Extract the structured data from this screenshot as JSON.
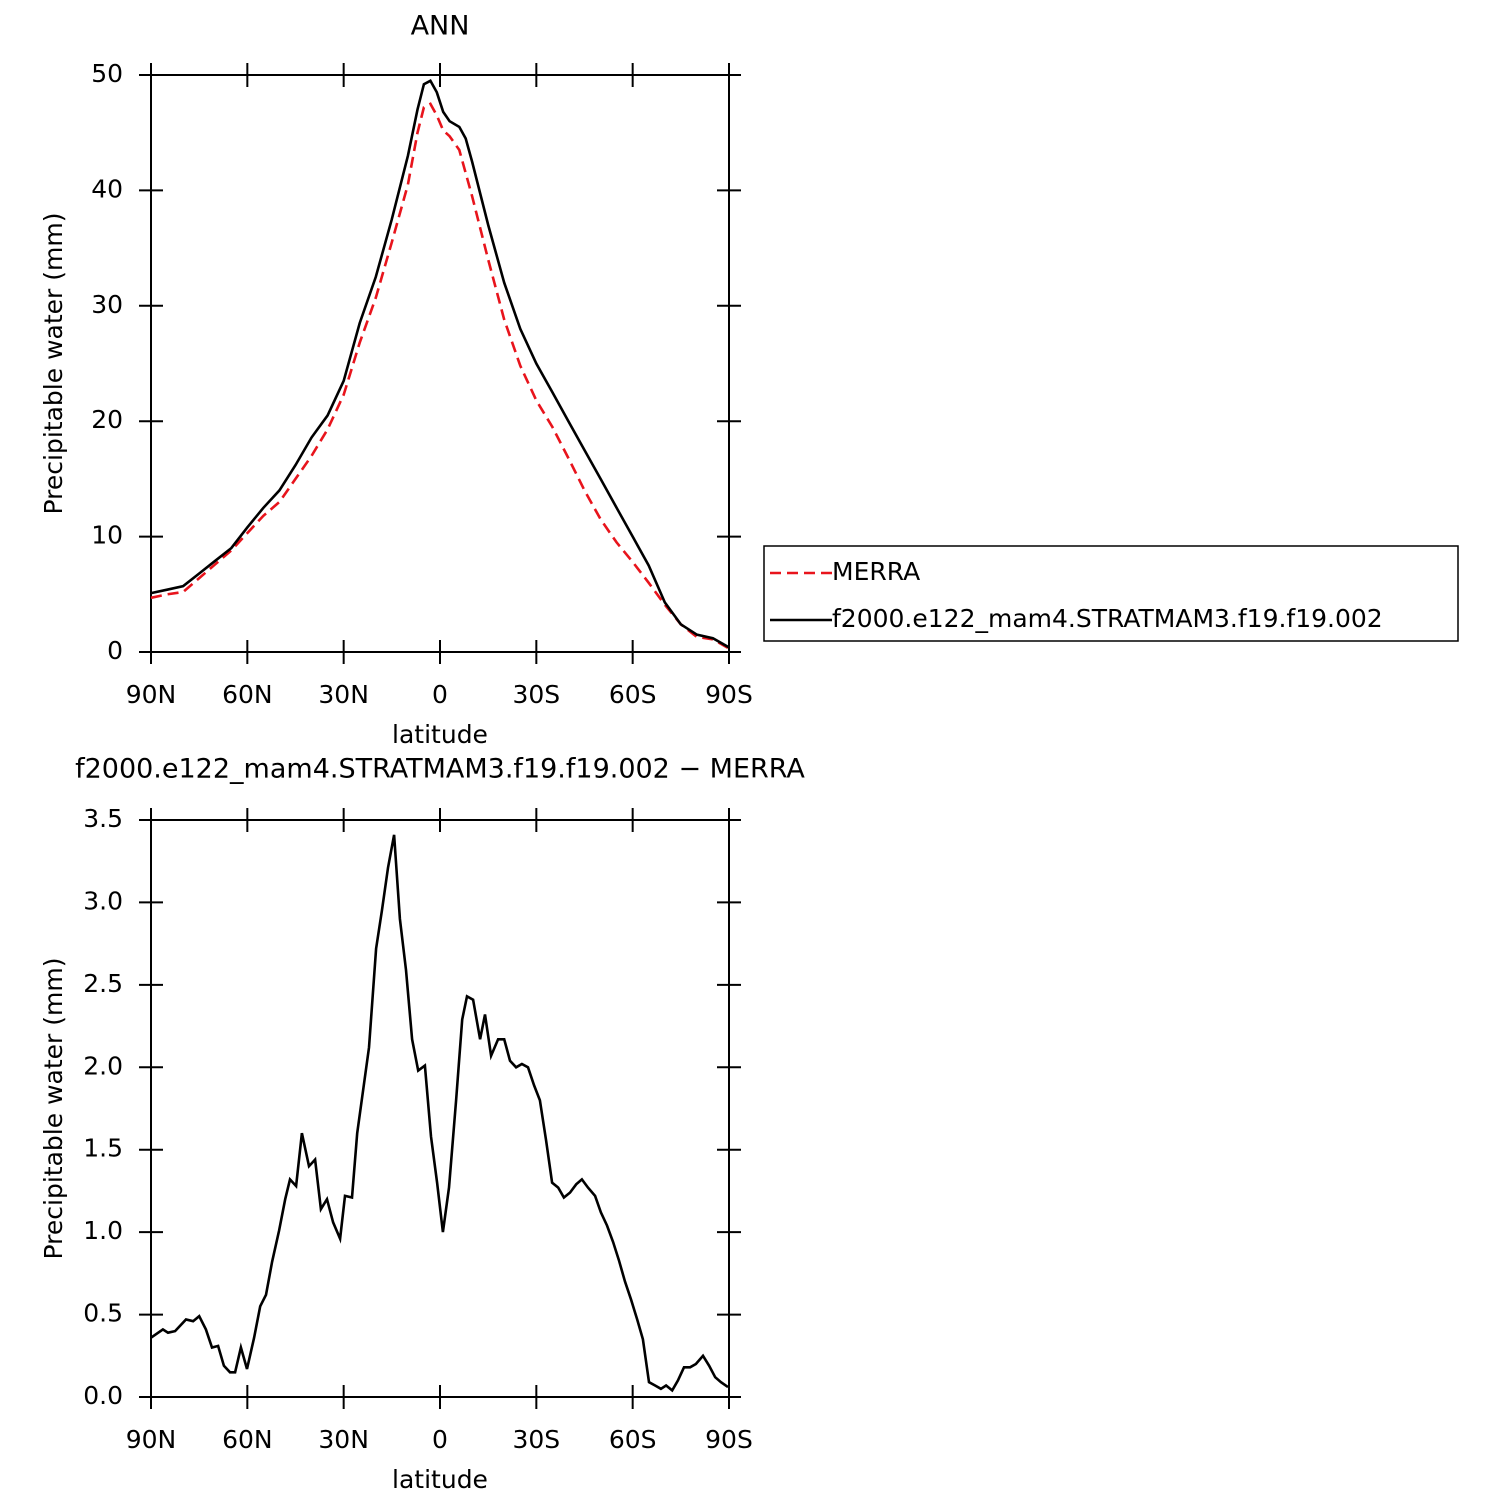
{
  "chart_data": [
    {
      "type": "line",
      "title": "ANN",
      "xlabel": "latitude",
      "ylabel": "Precipitable water (mm)",
      "legend": "right",
      "xlim": [
        90,
        -90
      ],
      "xticks": [
        {
          "value": 90,
          "label": "90N"
        },
        {
          "value": 60,
          "label": "60N"
        },
        {
          "value": 30,
          "label": "30N"
        },
        0,
        {
          "value": -30,
          "label": "30S"
        },
        {
          "value": -60,
          "label": "60S"
        },
        {
          "value": -90,
          "label": "90S"
        }
      ],
      "ylim": [
        0,
        50
      ],
      "yticks": [
        0,
        10,
        20,
        30,
        40,
        50
      ],
      "x": [
        90,
        85,
        80,
        75,
        70,
        65,
        60,
        55,
        50,
        45,
        40,
        35,
        30,
        25,
        20,
        15,
        10,
        7,
        5,
        3,
        1,
        -1,
        -3,
        -6,
        -8,
        -10,
        -15,
        -20,
        -25,
        -30,
        -35,
        -40,
        -45,
        -50,
        -55,
        -60,
        -65,
        -70,
        -75,
        -80,
        -85,
        -90
      ],
      "series": [
        {
          "name": "MERRA",
          "color": "#e8141c",
          "dash": true,
          "values": [
            4.7,
            5.0,
            5.2,
            6.4,
            7.6,
            8.8,
            10.3,
            11.8,
            13,
            15,
            17,
            19.3,
            22.3,
            26.8,
            30.7,
            35.5,
            40.5,
            45,
            47.2,
            47.5,
            46.5,
            45.2,
            44.7,
            43.5,
            41.5,
            39.5,
            34,
            28.8,
            24.8,
            21.8,
            19.5,
            16.8,
            14,
            11.5,
            9.5,
            7.8,
            6,
            4.1,
            2.4,
            1.3,
            1.1,
            0.3
          ]
        },
        {
          "name": "f2000.e122_mam4.STRATMAM3.f19.f19.002",
          "color": "#000000",
          "dash": false,
          "values": [
            5.1,
            5.4,
            5.7,
            6.8,
            7.9,
            9.0,
            10.8,
            12.5,
            14.0,
            16.2,
            18.6,
            20.5,
            23.5,
            28.5,
            32.5,
            37.5,
            43,
            47,
            49.2,
            49.5,
            48.5,
            46.8,
            46,
            45.5,
            44.5,
            42.5,
            37,
            32,
            28,
            25,
            22.5,
            20,
            17.5,
            15,
            12.5,
            10,
            7.5,
            4.3,
            2.4,
            1.5,
            1.2,
            0.4
          ]
        }
      ]
    },
    {
      "type": "line",
      "title": "f2000.e122_mam4.STRATMAM3.f19.f19.002 − MERRA",
      "xlabel": "latitude",
      "ylabel": "Precipitable water (mm)",
      "xlim": [
        90,
        -90
      ],
      "xticks": [
        {
          "value": 90,
          "label": "90N"
        },
        {
          "value": 60,
          "label": "60N"
        },
        {
          "value": 30,
          "label": "30N"
        },
        0,
        {
          "value": -30,
          "label": "30S"
        },
        {
          "value": -60,
          "label": "60S"
        },
        {
          "value": -90,
          "label": "90S"
        }
      ],
      "ylim": [
        0,
        3.5
      ],
      "yticks": [
        {
          "value": 0,
          "label": "0.0"
        },
        0.5,
        {
          "value": 1,
          "label": "1.0"
        },
        1.5,
        {
          "value": 2,
          "label": "2.0"
        },
        2.5,
        {
          "value": 3,
          "label": "3.0"
        },
        3.5
      ],
      "x": [
        90.0,
        86.3,
        84.7,
        82.5,
        79.1,
        76.9,
        75.0,
        72.9,
        71.0,
        69.1,
        67.3,
        65.4,
        63.8,
        62.0,
        60.1,
        57.9,
        56.0,
        54.2,
        52.3,
        50.1,
        48.2,
        46.7,
        44.8,
        43.0,
        40.8,
        38.9,
        37.1,
        35.2,
        33.3,
        31.1,
        29.6,
        27.4,
        25.8,
        22.1,
        19.9,
        18.1,
        16.2,
        14.3,
        12.5,
        10.6,
        8.7,
        6.8,
        4.7,
        2.8,
        0.9,
        -0.9,
        -2.8,
        -5.0,
        -6.9,
        -8.4,
        -10.3,
        -12.5,
        -14.0,
        -15.9,
        -18.1,
        -20.0,
        -21.8,
        -23.7,
        -25.5,
        -27.4,
        -29.3,
        -31.1,
        -33.0,
        -34.9,
        -36.8,
        -38.6,
        -40.5,
        -42.4,
        -44.2,
        -46.1,
        -48.3,
        -50.1,
        -52.0,
        -53.9,
        -55.7,
        -57.6,
        -59.5,
        -61.4,
        -63.2,
        -65.1,
        -67.0,
        -68.8,
        -70.4,
        -72.3,
        -74.1,
        -76.0,
        -77.9,
        -79.7,
        -81.9,
        -83.8,
        -85.7,
        -87.5,
        -89.7
      ],
      "series": [
        {
          "color": "#000000",
          "values": [
            0.36,
            0.41,
            0.39,
            0.4,
            0.47,
            0.46,
            0.49,
            0.41,
            0.3,
            0.31,
            0.19,
            0.15,
            0.15,
            0.3,
            0.17,
            0.36,
            0.55,
            0.62,
            0.82,
            1.01,
            1.2,
            1.32,
            1.28,
            1.6,
            1.4,
            1.44,
            1.14,
            1.2,
            1.06,
            0.96,
            1.22,
            1.21,
            1.6,
            2.12,
            2.72,
            2.95,
            3.21,
            3.41,
            2.9,
            2.59,
            2.17,
            1.98,
            2.01,
            1.58,
            1.3,
            1.0,
            1.27,
            1.8,
            2.29,
            2.43,
            2.41,
            2.17,
            2.32,
            2.07,
            2.17,
            2.17,
            2.04,
            2.0,
            2.02,
            2.0,
            1.89,
            1.8,
            1.56,
            1.3,
            1.27,
            1.21,
            1.24,
            1.29,
            1.32,
            1.27,
            1.22,
            1.12,
            1.04,
            0.94,
            0.83,
            0.7,
            0.59,
            0.47,
            0.35,
            0.09,
            0.07,
            0.05,
            0.07,
            0.04,
            0.1,
            0.18,
            0.18,
            0.2,
            0.25,
            0.19,
            0.12,
            0.09,
            0.06
          ]
        }
      ]
    }
  ]
}
